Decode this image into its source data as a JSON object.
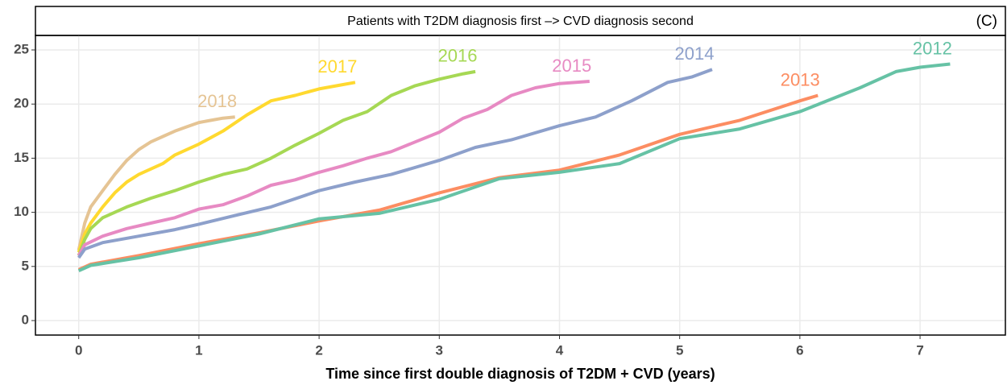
{
  "chart_data": {
    "type": "line",
    "title": "Patients with T2DM diagnosis first –> CVD diagnosis second",
    "panel_label": "(C)",
    "x_label": "Time since first double diagnosis of T2DM + CVD (years)",
    "xlim": [
      -0.36,
      7.71
    ],
    "ylim": [
      -1.34,
      26.34
    ],
    "xticks": [
      0,
      1,
      2,
      3,
      4,
      5,
      6,
      7
    ],
    "yticks": [
      0,
      5,
      10,
      15,
      20,
      25
    ],
    "grid": true,
    "series": [
      {
        "name": "2018",
        "color": "#e5c494",
        "x": [
          0,
          0.05,
          0.1,
          0.2,
          0.3,
          0.4,
          0.5,
          0.6,
          0.7,
          0.8,
          0.9,
          1.0,
          1.1,
          1.2,
          1.3
        ],
        "values": [
          6.5,
          9,
          10.5,
          12,
          13.5,
          14.8,
          15.8,
          16.5,
          17,
          17.5,
          17.9,
          18.3,
          18.5,
          18.7,
          18.8
        ]
      },
      {
        "name": "2017",
        "color": "#ffd92f",
        "x": [
          0,
          0.05,
          0.1,
          0.2,
          0.3,
          0.4,
          0.5,
          0.6,
          0.7,
          0.8,
          0.9,
          1.0,
          1.2,
          1.4,
          1.6,
          1.8,
          2.0,
          2.2,
          2.3
        ],
        "values": [
          6.3,
          8,
          9,
          10.5,
          11.8,
          12.8,
          13.5,
          14,
          14.5,
          15.3,
          15.8,
          16.3,
          17.5,
          19,
          20.3,
          20.8,
          21.4,
          21.8,
          22
        ]
      },
      {
        "name": "2016",
        "color": "#a6d854",
        "x": [
          0,
          0.05,
          0.1,
          0.2,
          0.4,
          0.6,
          0.8,
          1.0,
          1.2,
          1.4,
          1.6,
          1.8,
          2.0,
          2.2,
          2.4,
          2.6,
          2.8,
          3.0,
          3.2,
          3.3
        ],
        "values": [
          6,
          7.5,
          8.5,
          9.5,
          10.5,
          11.3,
          12,
          12.8,
          13.5,
          14,
          15,
          16.2,
          17.3,
          18.5,
          19.3,
          20.8,
          21.7,
          22.3,
          22.8,
          23
        ]
      },
      {
        "name": "2015",
        "color": "#e78ac3",
        "x": [
          0,
          0.05,
          0.2,
          0.4,
          0.6,
          0.8,
          1.0,
          1.2,
          1.4,
          1.6,
          1.8,
          2.0,
          2.2,
          2.4,
          2.6,
          2.8,
          3.0,
          3.2,
          3.4,
          3.6,
          3.8,
          4.0,
          4.25
        ],
        "values": [
          6,
          7,
          7.8,
          8.5,
          9,
          9.5,
          10.3,
          10.7,
          11.5,
          12.5,
          13,
          13.7,
          14.3,
          15,
          15.6,
          16.5,
          17.4,
          18.7,
          19.5,
          20.8,
          21.5,
          21.9,
          22.1
        ]
      },
      {
        "name": "2014",
        "color": "#8da0cb",
        "x": [
          0,
          0.05,
          0.2,
          0.5,
          0.8,
          1.0,
          1.3,
          1.6,
          2.0,
          2.3,
          2.6,
          3.0,
          3.3,
          3.6,
          4.0,
          4.3,
          4.6,
          4.9,
          5.1,
          5.27
        ],
        "values": [
          5.8,
          6.6,
          7.2,
          7.8,
          8.4,
          8.9,
          9.7,
          10.5,
          12,
          12.8,
          13.5,
          14.8,
          16,
          16.7,
          18,
          18.8,
          20.3,
          22,
          22.5,
          23.2
        ]
      },
      {
        "name": "2013",
        "color": "#fc8d62",
        "x": [
          0,
          0.1,
          0.5,
          1.0,
          1.5,
          2.0,
          2.5,
          3.0,
          3.5,
          4.0,
          4.5,
          5.0,
          5.5,
          6.0,
          6.15
        ],
        "values": [
          4.7,
          5.2,
          6,
          7.1,
          8.1,
          9.2,
          10.2,
          11.8,
          13.2,
          13.9,
          15.3,
          17.2,
          18.5,
          20.3,
          20.8
        ]
      },
      {
        "name": "2012",
        "color": "#66c2a5",
        "x": [
          0,
          0.1,
          0.5,
          1.0,
          1.5,
          2.0,
          2.5,
          3.0,
          3.5,
          4.0,
          4.5,
          5.0,
          5.5,
          6.0,
          6.5,
          6.8,
          7.0,
          7.25
        ],
        "values": [
          4.6,
          5.1,
          5.8,
          6.9,
          8,
          9.4,
          9.9,
          11.2,
          13.1,
          13.7,
          14.5,
          16.8,
          17.7,
          19.3,
          21.5,
          23,
          23.4,
          23.7
        ]
      }
    ]
  }
}
